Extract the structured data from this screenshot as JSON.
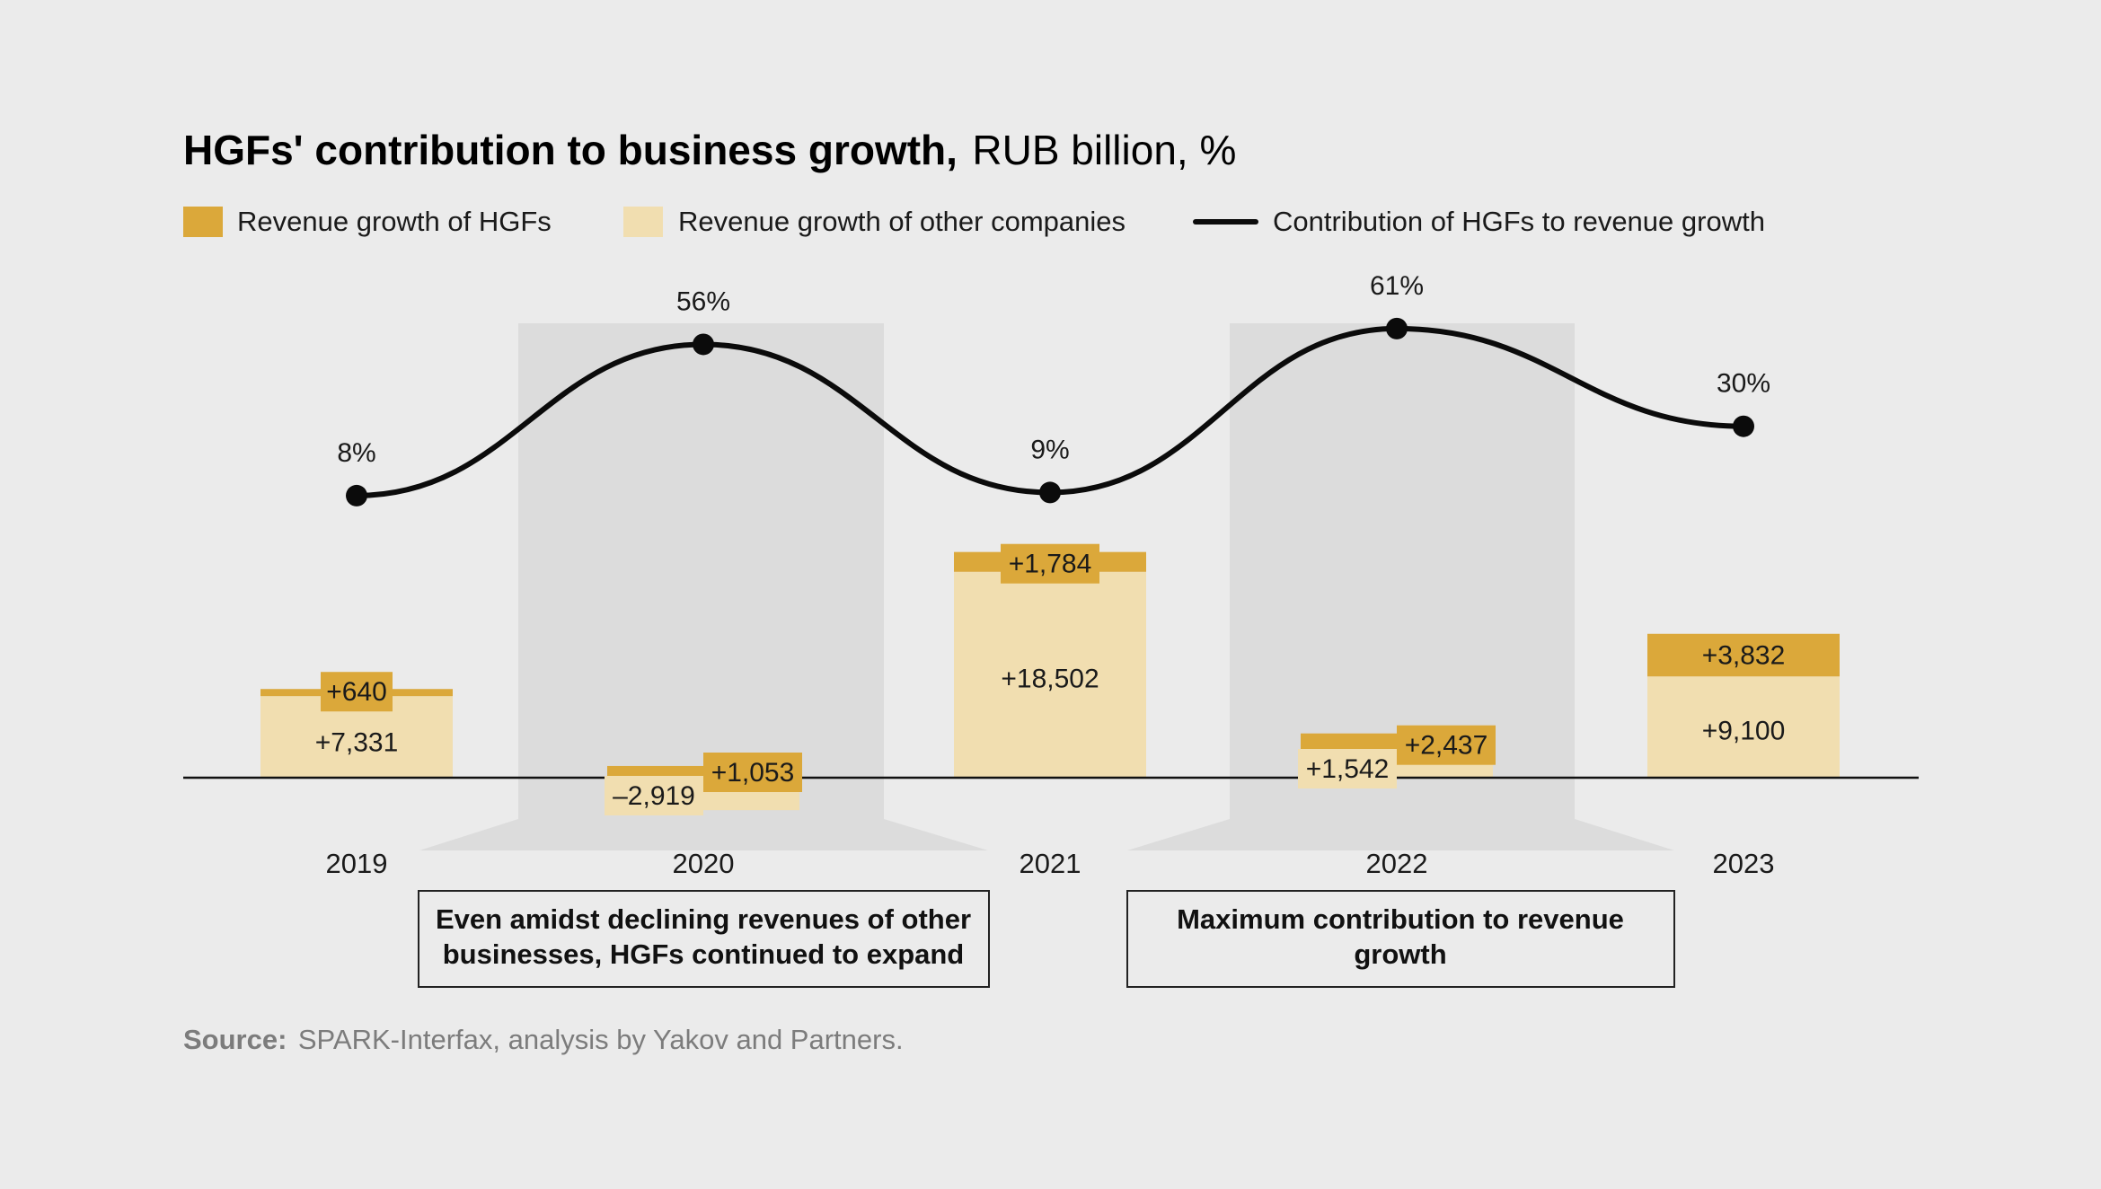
{
  "title": {
    "bold": "HGFs' contribution to business growth,",
    "regular": "RUB billion, %"
  },
  "legend": [
    {
      "label": "Revenue growth of HGFs",
      "color": "#dba83a",
      "kind": "box"
    },
    {
      "label": "Revenue growth of other companies",
      "color": "#f1deb0",
      "kind": "box"
    },
    {
      "label": "Contribution of HGFs to revenue growth",
      "color": "#0b0b0b",
      "kind": "line"
    }
  ],
  "colors": {
    "hgf": "#dba83a",
    "other": "#f1deb0",
    "line": "#0b0b0b",
    "highlight": "#dcdcdc",
    "background": "#ebebeb"
  },
  "chart_data": {
    "type": "bar",
    "stacked": true,
    "categories": [
      "2019",
      "2020",
      "2021",
      "2022",
      "2023"
    ],
    "series": [
      {
        "name": "Revenue growth of other companies",
        "values": [
          7331,
          -2919,
          18502,
          1542,
          9100
        ],
        "labels": [
          "+7,331",
          "–2,919",
          "+18,502",
          "+1,542",
          "+9,100"
        ]
      },
      {
        "name": "Revenue growth of HGFs",
        "values": [
          640,
          1053,
          1784,
          2437,
          3832
        ],
        "labels": [
          "+640",
          "+1,053",
          "+1,784",
          "+2,437",
          "+3,832"
        ]
      }
    ],
    "line": {
      "name": "Contribution of HGFs to revenue growth",
      "values": [
        8,
        56,
        9,
        61,
        30
      ],
      "labels": [
        "8%",
        "56%",
        "9%",
        "61%",
        "30%"
      ]
    },
    "highlighted_categories": [
      "2020",
      "2022"
    ]
  },
  "annotations": [
    {
      "category": "2020",
      "lines": [
        "Even amidst declining revenues of other",
        "businesses, HGFs continued to expand"
      ]
    },
    {
      "category": "2022",
      "lines": [
        "Maximum contribution to revenue",
        "growth"
      ]
    }
  ],
  "source": {
    "label": "Source:",
    "text": "SPARK-Interfax, analysis by Yakov and Partners."
  }
}
